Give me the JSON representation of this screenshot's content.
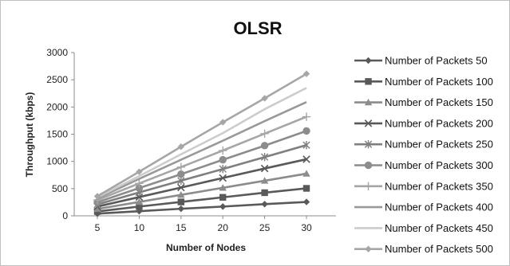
{
  "chart_data": {
    "type": "line",
    "title": "OLSR",
    "xlabel": "Number of Nodes",
    "ylabel": "Throughput (kbps)",
    "x": [
      5,
      10,
      15,
      20,
      25,
      30
    ],
    "ylim": [
      0,
      3000
    ],
    "yticks": [
      0,
      500,
      1000,
      1500,
      2000,
      2500,
      3000
    ],
    "grid": false,
    "legend": "right",
    "series": [
      {
        "name": "Number of Packets 50",
        "values": [
          40,
          85,
          130,
          170,
          215,
          255
        ],
        "color": "#595959",
        "marker": "diamond"
      },
      {
        "name": "Number of Packets 100",
        "values": [
          80,
          170,
          255,
          340,
          425,
          505
        ],
        "color": "#595959",
        "marker": "square"
      },
      {
        "name": "Number of Packets 150",
        "values": [
          125,
          255,
          385,
          515,
          645,
          775
        ],
        "color": "#8c8c8c",
        "marker": "triangle"
      },
      {
        "name": "Number of Packets 200",
        "values": [
          170,
          345,
          520,
          695,
          870,
          1040
        ],
        "color": "#595959",
        "marker": "x"
      },
      {
        "name": "Number of Packets 250",
        "values": [
          210,
          430,
          645,
          860,
          1080,
          1300
        ],
        "color": "#7f7f7f",
        "marker": "star"
      },
      {
        "name": "Number of Packets 300",
        "values": [
          250,
          510,
          765,
          1030,
          1290,
          1560
        ],
        "color": "#8c8c8c",
        "marker": "circle"
      },
      {
        "name": "Number of Packets 350",
        "values": [
          290,
          595,
          895,
          1200,
          1510,
          1820
        ],
        "color": "#a6a6a6",
        "marker": "plus"
      },
      {
        "name": "Number of Packets 400",
        "values": [
          320,
          680,
          1030,
          1380,
          1740,
          2090
        ],
        "color": "#999999",
        "marker": "none"
      },
      {
        "name": "Number of Packets 450",
        "values": [
          340,
          730,
          1130,
          1520,
          1960,
          2350
        ],
        "color": "#cccccc",
        "marker": "none"
      },
      {
        "name": "Number of Packets 500",
        "values": [
          360,
          810,
          1270,
          1720,
          2160,
          2610
        ],
        "color": "#a6a6a6",
        "marker": "diamond"
      }
    ]
  }
}
